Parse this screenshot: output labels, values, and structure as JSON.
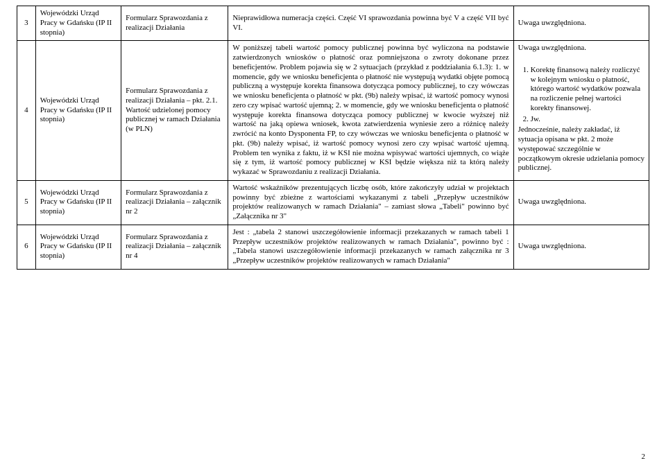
{
  "rows": [
    {
      "num": "3",
      "org": "Wojewódzki Urząd Pracy w Gdańsku (IP II stopnia)",
      "form": "Formularz Sprawozdania z realizacji Działania",
      "content": "Nieprawidłowa numeracja części. Część VI sprawozdania powinna być V a część VII być VI.",
      "note_intro": "Uwaga uwzględniona."
    },
    {
      "num": "4",
      "org": "Wojewódzki Urząd Pracy w Gdańsku (IP II stopnia)",
      "form": "Formularz Sprawozdania z realizacji Działania – pkt. 2.1. Wartość udzielonej pomocy publicznej w ramach Działania (w PLN)",
      "content": "W poniższej tabeli wartość pomocy publicznej powinna być wyliczona na podstawie zatwierdzonych wniosków o płatność oraz pomniejszona o zwroty dokonane przez beneficjentów. Problem pojawia się w 2 sytuacjach (przykład z poddziałania 6.1.3):\n1. w momencie, gdy we wniosku beneficjenta o płatność nie występują wydatki objęte pomocą publiczną a występuje korekta finansowa dotycząca pomocy publicznej, to czy wówczas we wniosku beneficjenta o płatność w pkt. (9b) należy wpisać, iż wartość pomocy wynosi zero czy wpisać wartość ujemną;\n2. w momencie, gdy we wniosku beneficjenta o płatność występuje korekta finansowa dotycząca pomocy publicznej w kwocie wyższej niż wartość na jaką opiewa wniosek, kwota zatwierdzenia wyniesie zero a różnicę należy zwrócić na konto Dysponenta FP, to czy wówczas we wniosku beneficjenta o płatność w pkt. (9b) należy wpisać, iż wartość pomocy wynosi zero czy wpisać wartość ujemną.\nProblem ten wynika z faktu, iż w KSI nie można wpisywać wartości ujemnych, co wiąże się z tym, iż wartość pomocy publicznej w KSI będzie większa niż ta którą należy wykazać w Sprawozdaniu z realizacji Działania.",
      "note_intro": "Uwaga uwzględniona.",
      "note_list": [
        "Korektę finansową należy rozliczyć w kolejnym wniosku o płatność, którego wartość wydatków pozwala na rozliczenie pełnej wartości korekty finansowej.",
        "Jw."
      ],
      "note_tail": "Jednocześnie, należy zakładać, iż sytuacja opisana w pkt. 2 może występować szczególnie w początkowym okresie udzielania pomocy publicznej."
    },
    {
      "num": "5",
      "org": "Wojewódzki Urząd Pracy w Gdańsku (IP II stopnia)",
      "form": "Formularz Sprawozdania z realizacji Działania – załącznik nr 2",
      "content": "Wartość wskaźników prezentujących liczbę osób, które zakończyły udział w projektach powinny być zbieżne z wartościami wykazanymi z tabeli „Przepływ uczestników projektów realizowanych w ramach Działania\" – zamiast słowa „Tabeli\" powinno być „Załącznika nr 3\"",
      "note_intro": "Uwaga uwzględniona."
    },
    {
      "num": "6",
      "org": "Wojewódzki Urząd Pracy w Gdańsku (IP II stopnia)",
      "form": "Formularz Sprawozdania z realizacji Działania – załącznik nr 4",
      "content": "Jest : „tabela 2 stanowi uszczegółowienie informacji przekazanych w ramach tabeli 1 Przepływ uczestników projektów realizowanych w ramach Działania\", powinno być : „Tabela stanowi uszczegółowienie informacji przekazanych w ramach załącznika nr 3 „Przepływ uczestników projektów realizowanych w ramach Działania\"",
      "note_intro": "Uwaga uwzględniona."
    }
  ],
  "page_number": "2"
}
